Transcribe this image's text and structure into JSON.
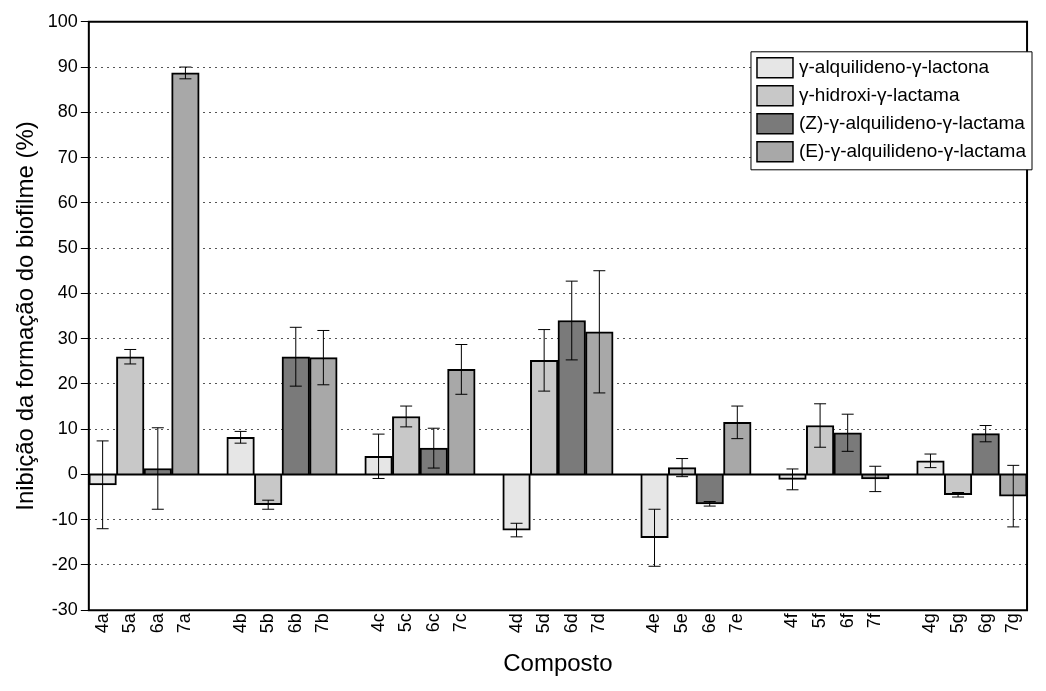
{
  "chart_data": {
    "type": "bar",
    "xlabel": "Composto",
    "ylabel": "Inibição da formação do biofilme (%)",
    "categories": [
      "4a",
      "5a",
      "6a",
      "7a",
      null,
      "4b",
      "5b",
      "6b",
      "7b",
      null,
      "4c",
      "5c",
      "6c",
      "7c",
      null,
      "4d",
      "5d",
      "6d",
      "7d",
      null,
      "4e",
      "5e",
      "6e",
      "7e",
      null,
      "4f",
      "5f",
      "6f",
      "7f",
      null,
      "4g",
      "5g",
      "6g",
      "7g"
    ],
    "series": [
      {
        "name": "γ-alquilideno-γ-lactona",
        "color": "#e6e6e6",
        "values": [
          -2.3,
          null,
          null,
          null,
          null,
          8.2,
          null,
          null,
          null,
          null,
          4,
          null,
          null,
          null,
          null,
          -12.3,
          null,
          null,
          null,
          null,
          -14,
          null,
          null,
          null,
          null,
          -1.1,
          null,
          null,
          null,
          null,
          3,
          null,
          null,
          null
        ],
        "errors": [
          9.7,
          null,
          null,
          null,
          null,
          1.3,
          null,
          null,
          null,
          null,
          4.9,
          null,
          null,
          null,
          null,
          1.5,
          null,
          null,
          null,
          null,
          6.3,
          null,
          null,
          null,
          null,
          2.3,
          null,
          null,
          null,
          null,
          1.5,
          null,
          null,
          null
        ]
      },
      {
        "name": "γ-hidroxi-γ-lactama",
        "color": "#c8c8c8",
        "values": [
          null,
          26,
          null,
          null,
          null,
          null,
          -6.7,
          null,
          null,
          null,
          null,
          12.8,
          null,
          null,
          null,
          null,
          25.2,
          null,
          null,
          null,
          null,
          1.5,
          null,
          null,
          null,
          null,
          10.8,
          null,
          null,
          null,
          null,
          -4.5,
          null,
          null
        ],
        "errors": [
          null,
          1.6,
          null,
          null,
          null,
          null,
          1,
          null,
          null,
          null,
          null,
          2.3,
          null,
          null,
          null,
          null,
          6.8,
          null,
          null,
          null,
          null,
          2,
          null,
          null,
          null,
          null,
          4.8,
          null,
          null,
          null,
          null,
          0.5,
          null,
          null
        ]
      },
      {
        "name": "(Z)-γ-alquilideno-γ-lactama",
        "color": "#7a7a7a",
        "values": [
          null,
          null,
          1.3,
          null,
          null,
          null,
          null,
          26,
          null,
          null,
          null,
          null,
          5.8,
          null,
          null,
          null,
          null,
          34,
          null,
          null,
          null,
          null,
          -6.5,
          null,
          null,
          null,
          null,
          9.2,
          null,
          null,
          null,
          null,
          9,
          null
        ],
        "errors": [
          null,
          null,
          9,
          null,
          null,
          null,
          null,
          6.5,
          null,
          null,
          null,
          null,
          4.4,
          null,
          null,
          null,
          null,
          8.7,
          null,
          null,
          null,
          null,
          0.5,
          null,
          null,
          null,
          null,
          4.1,
          null,
          null,
          null,
          null,
          1.8,
          null
        ]
      },
      {
        "name": "(E)-γ-alquilideno-γ-lactama",
        "color": "#a8a8a8",
        "values": [
          null,
          null,
          null,
          88.7,
          null,
          null,
          null,
          null,
          25.8,
          null,
          null,
          null,
          null,
          23.2,
          null,
          null,
          null,
          null,
          31.5,
          null,
          null,
          null,
          null,
          11.5,
          null,
          null,
          null,
          null,
          -1,
          null,
          null,
          null,
          null,
          -4.8
        ],
        "errors": [
          null,
          null,
          null,
          1.3,
          null,
          null,
          null,
          null,
          6,
          null,
          null,
          null,
          null,
          5.5,
          null,
          null,
          null,
          null,
          13.5,
          null,
          null,
          null,
          null,
          3.6,
          null,
          null,
          null,
          null,
          2.8,
          null,
          null,
          null,
          null,
          6.8
        ]
      }
    ],
    "ylim": [
      -30,
      100
    ],
    "yticks": [
      -30,
      -20,
      -10,
      0,
      10,
      20,
      30,
      40,
      50,
      60,
      70,
      80,
      90,
      100
    ],
    "grid": "y",
    "legend": "top right",
    "ref_lines": [
      {
        "axis": "y",
        "value": 0
      }
    ]
  }
}
